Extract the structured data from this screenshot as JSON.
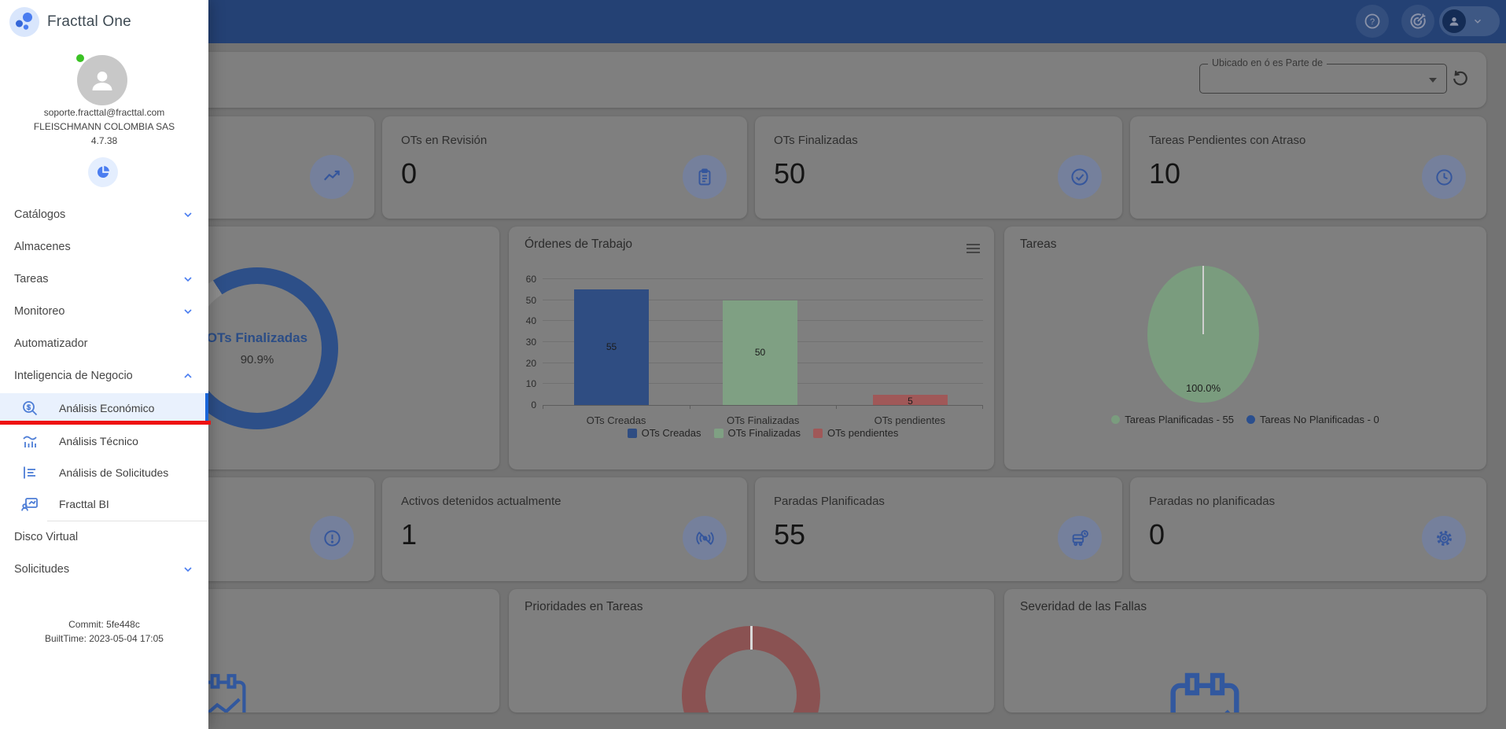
{
  "app": {
    "name": "Fracttal One"
  },
  "topbar": {
    "icons": [
      "help-icon",
      "target-icon",
      "user-icon",
      "chevron-down-icon"
    ]
  },
  "sidebar": {
    "logo_text": "Fracttal One",
    "logo_icon": "fracttal-dots-icon",
    "user_email": "soporte.fracttal@fracttal.com",
    "company": "FLEISCHMANN COLOMBIA SAS",
    "version": "4.7.38",
    "dashboard_icon": "pie-chart-icon",
    "menu": [
      {
        "label": "Catálogos",
        "chevron": "down"
      },
      {
        "label": "Almacenes",
        "chevron": ""
      },
      {
        "label": "Tareas",
        "chevron": "down"
      },
      {
        "label": "Monitoreo",
        "chevron": "down"
      },
      {
        "label": "Automatizador",
        "chevron": ""
      },
      {
        "label": "Inteligencia de Negocio",
        "chevron": "up"
      }
    ],
    "submenu": [
      {
        "label": "Análisis Económico",
        "icon": "search-dollar-icon",
        "active": true
      },
      {
        "label": "Análisis Técnico",
        "icon": "bar-chart-icon",
        "active": false
      },
      {
        "label": "Análisis de Solicitudes",
        "icon": "list-icon",
        "active": false
      },
      {
        "label": "Fracttal BI",
        "icon": "bi-monitor-icon",
        "active": false
      }
    ],
    "menu_bottom": [
      {
        "label": "Disco Virtual",
        "chevron": ""
      },
      {
        "label": "Solicitudes",
        "chevron": "down"
      }
    ],
    "build": {
      "commit": "Commit: 5fe448c",
      "built_time": "BuiltTime: 2023-05-04 17:05"
    },
    "annotation_color": "#ee1212"
  },
  "filter": {
    "label": "Ubicado en ó es Parte de",
    "value": "",
    "refresh_icon": "refresh-icon"
  },
  "kpis": [
    {
      "title": "",
      "value": "",
      "icon": "trending-icon"
    },
    {
      "title": "OTs en Revisión",
      "value": "0",
      "icon": "clipboard-icon"
    },
    {
      "title": "OTs Finalizadas",
      "value": "50",
      "icon": "check-circle-icon"
    },
    {
      "title": "Tareas Pendientes con Atraso",
      "value": "10",
      "icon": "clock-icon"
    },
    {
      "title": "",
      "value": "",
      "icon": "alert-circle-icon"
    },
    {
      "title": "Activos detenidos actualmente",
      "value": "1",
      "icon": "sensors-off-icon"
    },
    {
      "title": "Paradas Planificadas",
      "value": "55",
      "icon": "bus-clock-icon"
    },
    {
      "title": "Paradas no planificadas",
      "value": "0",
      "icon": "gear-icon"
    }
  ],
  "charts": {
    "gauge": {
      "type": "donut-gauge",
      "label": "OTs Finalizadas",
      "percent": 90.9,
      "percent_label": "90.9%",
      "color": "#2d4f88",
      "track_color": "#8d8d8d"
    },
    "ordenes": {
      "type": "bar",
      "title": "Órdenes de Trabajo",
      "categories": [
        "OTs Creadas",
        "OTs Finalizadas",
        "OTs pendientes"
      ],
      "values": [
        55,
        50,
        5
      ],
      "colors": [
        "#2f4d82",
        "#7fa083",
        "#a05858"
      ],
      "ylim": [
        0,
        60
      ],
      "yticks": [
        0,
        10,
        20,
        30,
        40,
        50,
        60
      ],
      "legend": [
        "OTs Creadas",
        "OTs Finalizadas",
        "OTs pendientes"
      ],
      "legend_position": "bottom",
      "grid": true,
      "menu_icon": "hamburger-icon"
    },
    "tareas": {
      "type": "pie",
      "title": "Tareas",
      "data_label": "100.0%",
      "slices": [
        {
          "label": "Tareas Planificadas - 55",
          "value": 55,
          "color": "#7a9c7e"
        },
        {
          "label": "Tareas No Planificadas - 0",
          "value": 0,
          "color": "#2b4f8e"
        }
      ]
    },
    "prioridades": {
      "type": "donut",
      "title": "Prioridades en Tareas",
      "color": "#8a5252"
    },
    "severidad": {
      "type": "empty",
      "title": "Severidad de las Fallas",
      "empty_icon": "calendar-chart-icon"
    },
    "empty_bottom_left": {
      "type": "empty",
      "title": "",
      "empty_icon": "calendar-chart-icon"
    }
  }
}
